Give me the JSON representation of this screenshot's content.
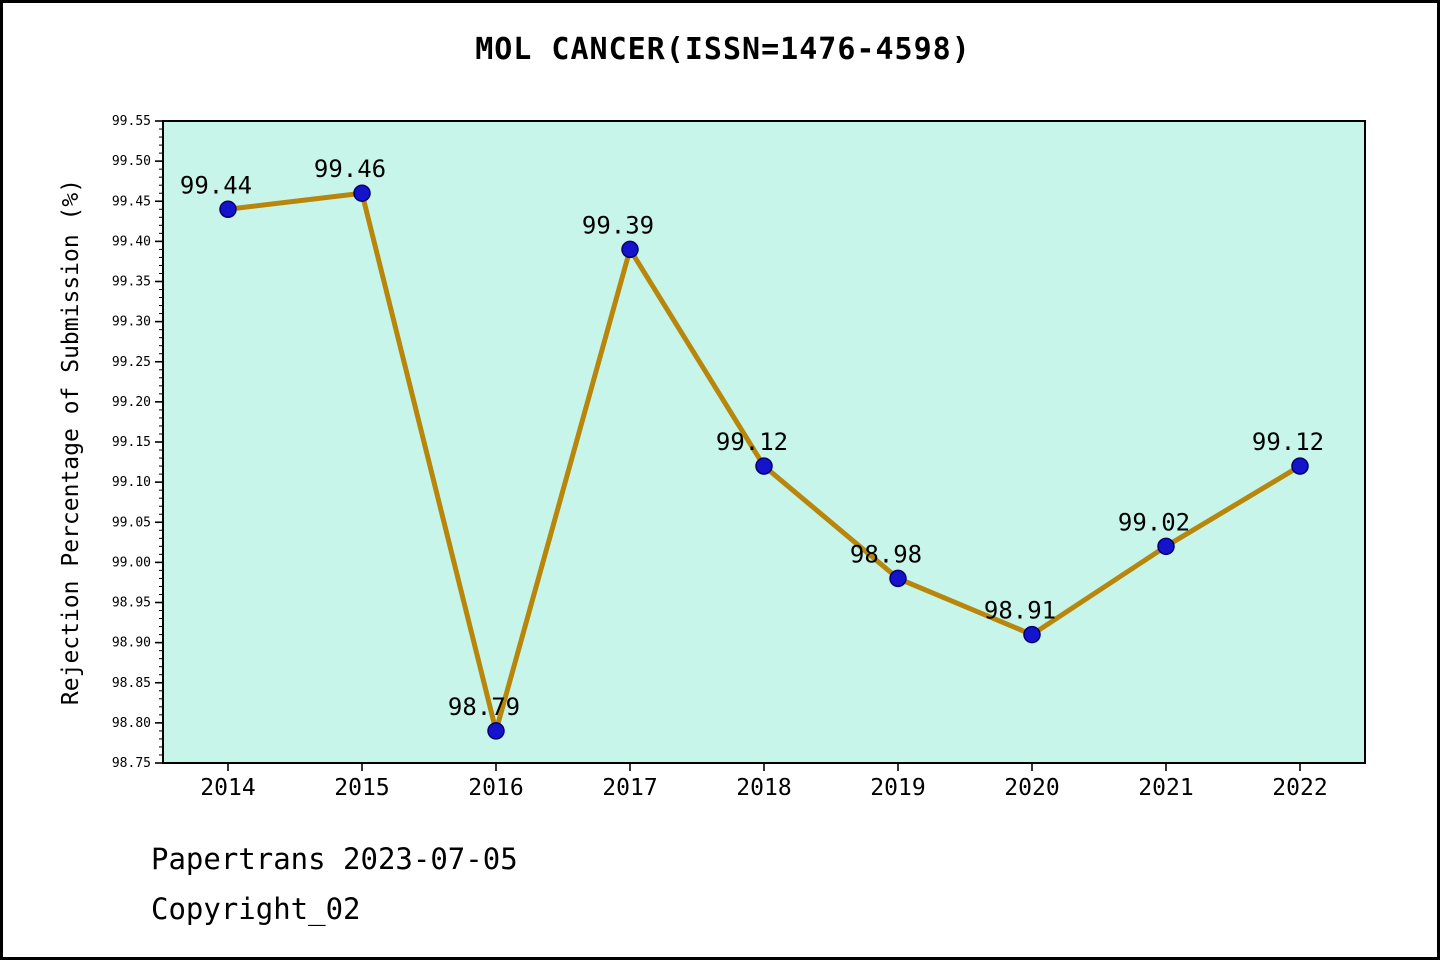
{
  "title": "MOL CANCER(ISSN=1476-4598)",
  "footer": {
    "line1": "Papertrans 2023-07-05",
    "line2": "Copyright_02"
  },
  "chart_data": {
    "type": "line",
    "title": "MOL CANCER(ISSN=1476-4598)",
    "xlabel": "",
    "ylabel": "Rejection Percentage of Submission (%)",
    "x": [
      2014,
      2015,
      2016,
      2017,
      2018,
      2019,
      2020,
      2021,
      2022
    ],
    "values": [
      99.44,
      99.46,
      98.79,
      99.39,
      99.12,
      98.98,
      98.91,
      99.02,
      99.12
    ],
    "point_labels": [
      "99.44",
      "99.46",
      "98.79",
      "99.39",
      "99.12",
      "98.98",
      "98.91",
      "99.02",
      "99.12"
    ],
    "ylim": [
      98.75,
      99.55
    ],
    "ytick_step": 0.05,
    "ytick_minor_step": 0.01,
    "grid": false,
    "legend_position": "none",
    "colors": {
      "line": "#B8860B",
      "marker_fill": "#1414CC",
      "marker_edge": "#00006E",
      "plot_bg": "#C8F5EA",
      "frame": "#000000",
      "text": "#000000"
    }
  }
}
